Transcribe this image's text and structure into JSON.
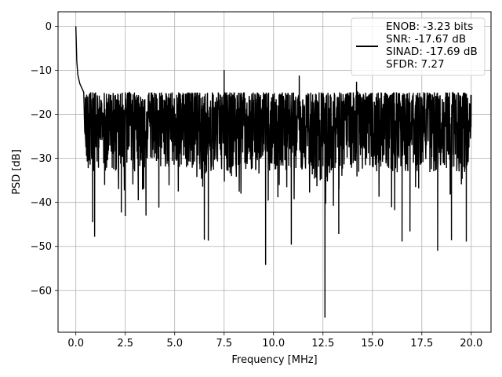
{
  "chart_data": {
    "type": "line",
    "title": "",
    "xlabel": "Frequency [MHz]",
    "ylabel": "PSD [dB]",
    "xlim": [
      -0.9,
      21.0
    ],
    "ylim": [
      -69.5,
      3.3
    ],
    "xticks": [
      0.0,
      2.5,
      5.0,
      7.5,
      10.0,
      12.5,
      15.0,
      17.5,
      20.0
    ],
    "xtick_labels": [
      "0.0",
      "2.5",
      "5.0",
      "7.5",
      "10.0",
      "12.5",
      "15.0",
      "17.5",
      "20.0"
    ],
    "yticks": [
      0,
      -10,
      -20,
      -30,
      -40,
      -50,
      -60
    ],
    "ytick_labels": [
      "0",
      "−10",
      "−20",
      "−30",
      "−40",
      "−50",
      "−60"
    ],
    "grid": true,
    "legend": {
      "placement": "top-right",
      "text_lines": [
        "ENOB: -3.23 bits",
        "SNR: -17.67 dB",
        "SINAD: -17.69 dB",
        "SFDR: 7.27"
      ]
    },
    "series": [
      {
        "color": "#000000",
        "description_points": {
          "peak": [
            0.0,
            0.0
          ],
          "decay": [
            [
              0.05,
              -8
            ],
            [
              0.1,
              -11
            ],
            [
              0.2,
              -13
            ],
            [
              0.4,
              -15
            ]
          ],
          "noise_floor_range": [
            -42,
            -13
          ],
          "notable_dips": [
            [
              0.85,
              -44.5
            ],
            [
              0.95,
              -47.8
            ],
            [
              2.3,
              -42.3
            ],
            [
              2.5,
              -43.1
            ],
            [
              3.55,
              -43.0
            ],
            [
              4.2,
              -41.2
            ],
            [
              6.5,
              -48.5
            ],
            [
              6.7,
              -48.7
            ],
            [
              9.6,
              -54.2
            ],
            [
              10.9,
              -49.6
            ],
            [
              12.6,
              -66.2
            ],
            [
              13.3,
              -47.2
            ],
            [
              16.5,
              -48.9
            ],
            [
              16.9,
              -46.6
            ],
            [
              18.3,
              -51.0
            ],
            [
              19.0,
              -48.6
            ],
            [
              19.75,
              -48.9
            ]
          ],
          "notable_peaks": [
            [
              7.5,
              -9.9
            ],
            [
              11.3,
              -11.2
            ],
            [
              14.2,
              -12.6
            ]
          ]
        }
      }
    ]
  }
}
